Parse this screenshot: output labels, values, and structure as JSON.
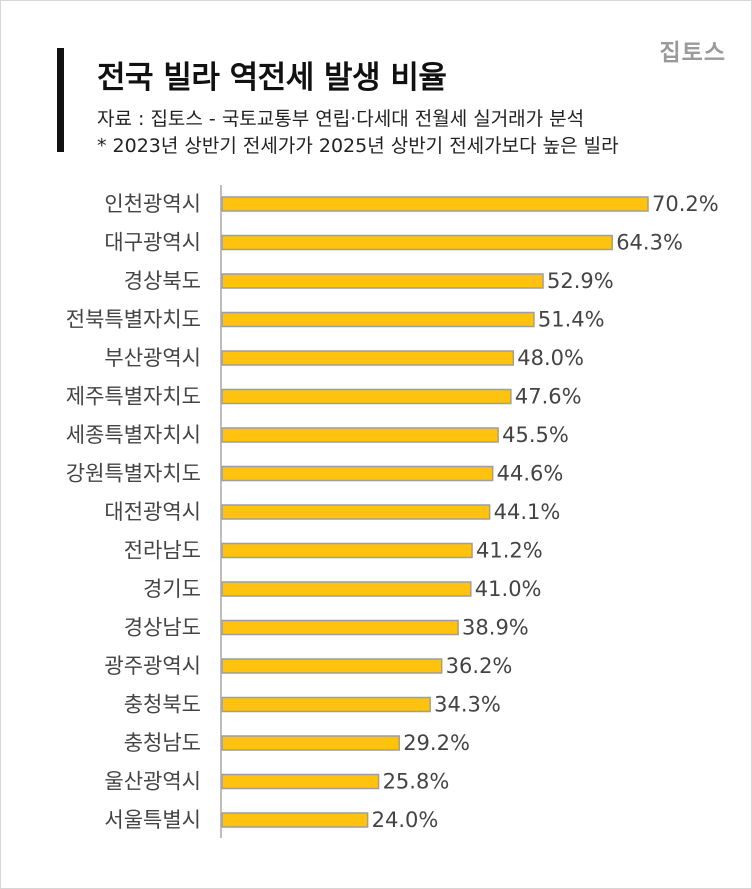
{
  "header": {
    "title": "전국 빌라 역전세 발생 비율",
    "source": "자료 : 집토스 - 국토교통부 연립·다세대 전월세 실거래가 분석",
    "note": "* 2023년 상반기 전세가가 2025년 상반기 전세가보다 높은 빌라",
    "logo": "집토스"
  },
  "colors": {
    "bar_fill": "#FFC20E",
    "bar_stroke": "#9E9E9E",
    "axis": "#BDBDBD"
  },
  "chart_data": {
    "type": "bar",
    "orientation": "horizontal",
    "categories": [
      "인천광역시",
      "대구광역시",
      "경상북도",
      "전북특별자치도",
      "부산광역시",
      "제주특별자치도",
      "세종특별자치시",
      "강원특별자치도",
      "대전광역시",
      "전라남도",
      "경기도",
      "경상남도",
      "광주광역시",
      "충청북도",
      "충청남도",
      "울산광역시",
      "서울특별시"
    ],
    "values": [
      70.2,
      64.3,
      52.9,
      51.4,
      48.0,
      47.6,
      45.5,
      44.6,
      44.1,
      41.2,
      41.0,
      38.9,
      36.2,
      34.3,
      29.2,
      25.8,
      24.0
    ],
    "value_labels": [
      "70.2%",
      "64.3%",
      "52.9%",
      "51.4%",
      "48.0%",
      "47.6%",
      "45.5%",
      "44.6%",
      "44.1%",
      "41.2%",
      "41.0%",
      "38.9%",
      "36.2%",
      "34.3%",
      "29.2%",
      "25.8%",
      "24.0%"
    ],
    "title": "전국 빌라 역전세 발생 비율",
    "xlabel": "",
    "ylabel": "",
    "xlim": [
      0,
      70.2
    ],
    "grid": false,
    "legend": "none"
  }
}
